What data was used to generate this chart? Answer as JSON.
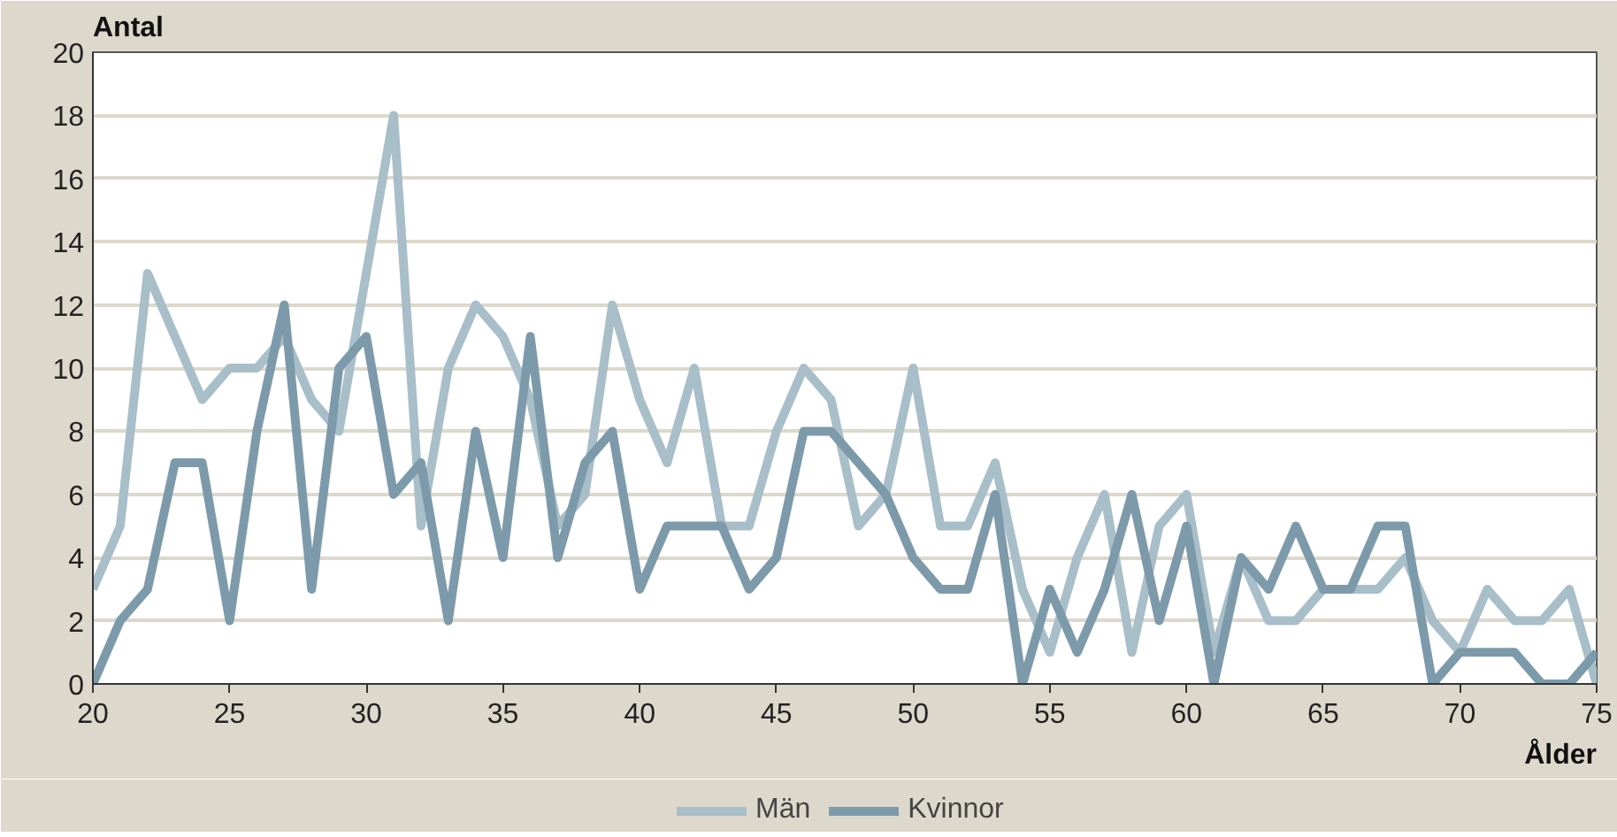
{
  "chart_data": {
    "type": "line",
    "xlabel": "Ålder",
    "ylabel": "Antal",
    "x": [
      20,
      21,
      22,
      23,
      24,
      25,
      26,
      27,
      28,
      29,
      30,
      31,
      32,
      33,
      34,
      35,
      36,
      37,
      38,
      39,
      40,
      41,
      42,
      43,
      44,
      45,
      46,
      47,
      48,
      49,
      50,
      51,
      52,
      53,
      54,
      55,
      56,
      57,
      58,
      59,
      60,
      61,
      62,
      63,
      64,
      65,
      66,
      67,
      68,
      69,
      70,
      71,
      72,
      73,
      74,
      75
    ],
    "series": [
      {
        "name": "Män",
        "color": "#a8bec8",
        "values": [
          3,
          5,
          13,
          11,
          9,
          10,
          10,
          11,
          9,
          8,
          13,
          18,
          5,
          10,
          12,
          11,
          9,
          5,
          6,
          12,
          9,
          7,
          10,
          5,
          5,
          8,
          10,
          9,
          5,
          6,
          10,
          5,
          5,
          7,
          3,
          1,
          4,
          6,
          1,
          5,
          6,
          1,
          4,
          2,
          2,
          3,
          3,
          3,
          4,
          2,
          1,
          3,
          2,
          2,
          3,
          0
        ]
      },
      {
        "name": "Kvinnor",
        "color": "#7d9aab",
        "values": [
          0,
          2,
          3,
          7,
          7,
          2,
          8,
          12,
          3,
          10,
          11,
          6,
          7,
          2,
          8,
          4,
          11,
          4,
          7,
          8,
          3,
          5,
          5,
          5,
          3,
          4,
          8,
          8,
          7,
          6,
          4,
          3,
          3,
          6,
          0,
          3,
          1,
          3,
          6,
          2,
          5,
          0,
          4,
          3,
          5,
          3,
          3,
          5,
          5,
          0,
          1,
          1,
          1,
          0,
          0,
          1
        ]
      }
    ],
    "xlim": [
      20,
      75
    ],
    "xticks": [
      20,
      25,
      30,
      35,
      40,
      45,
      50,
      55,
      60,
      65,
      70,
      75
    ],
    "ylim": [
      0,
      20
    ],
    "yticks": [
      0,
      2,
      4,
      6,
      8,
      10,
      12,
      14,
      16,
      18,
      20
    ],
    "grid": "y",
    "legend": "bottom",
    "marker": "none",
    "line_style": "solid"
  }
}
